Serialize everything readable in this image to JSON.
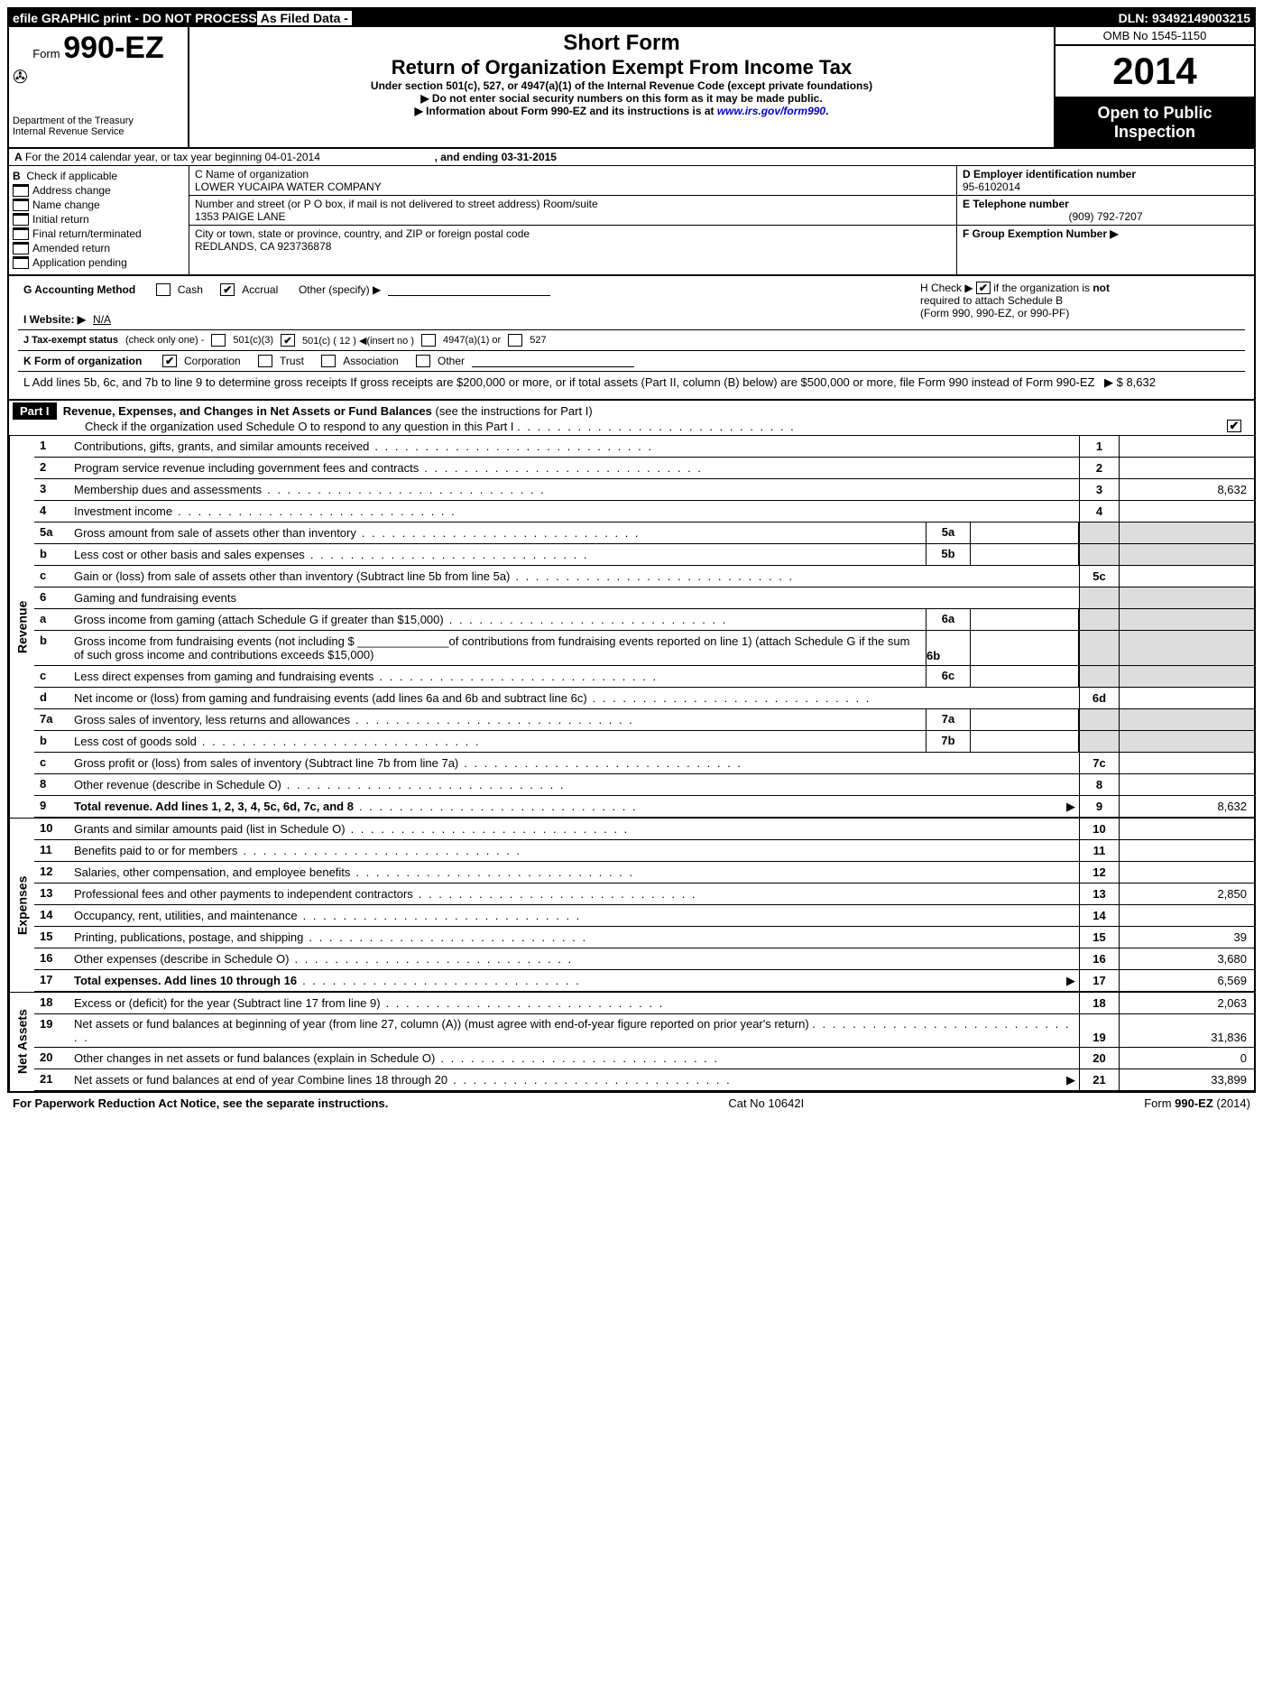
{
  "topbar": {
    "left": "efile GRAPHIC print - DO NOT PROCESS",
    "filed": "As Filed Data -",
    "dln": "DLN: 93492149003215"
  },
  "header": {
    "form_prefix": "Form",
    "form_number": "990-EZ",
    "dept1": "Department of the Treasury",
    "dept2": "Internal Revenue Service",
    "short_form": "Short Form",
    "title": "Return of Organization Exempt From Income Tax",
    "subtitle": "Under section 501(c), 527, or 4947(a)(1) of the Internal Revenue Code (except private foundations)",
    "note1": "▶ Do not enter social security numbers on this form as it may be made public.",
    "note2_prefix": "▶ Information about Form 990-EZ and its instructions is at ",
    "note2_link": "www.irs.gov/form990",
    "omb": "OMB No 1545-1150",
    "year": "2014",
    "open": "Open to Public Inspection"
  },
  "sectionA": {
    "label": "A",
    "text": "For the 2014 calendar year, or tax year beginning 04-01-2014",
    "ending": ", and ending 03-31-2015"
  },
  "sectionB": {
    "label": "B",
    "heading": "Check if applicable",
    "items": [
      "Address change",
      "Name change",
      "Initial return",
      "Final return/terminated",
      "Amended return",
      "Application pending"
    ]
  },
  "sectionC": {
    "name_label": "C Name of organization",
    "name": "LOWER YUCAIPA WATER COMPANY",
    "street_label": "Number and street (or P O box, if mail is not delivered to street address) Room/suite",
    "street": "1353 PAIGE LANE",
    "city_label": "City or town, state or province, country, and ZIP or foreign postal code",
    "city": "REDLANDS, CA  923736878"
  },
  "right": {
    "D_label": "D Employer identification number",
    "D_val": "95-6102014",
    "E_label": "E Telephone number",
    "E_val": "(909) 792-7207",
    "F_label": "F Group Exemption Number   ▶"
  },
  "G": {
    "label": "G Accounting Method",
    "cash": "Cash",
    "accrual": "Accrual",
    "other": "Other (specify) ▶"
  },
  "H": {
    "text1": "H   Check ▶",
    "text2": "if the organization is",
    "not": "not",
    "text3": "required to attach Schedule B",
    "text4": "(Form 990, 990-EZ, or 990-PF)"
  },
  "I": {
    "label": "I Website: ▶",
    "val": "N/A"
  },
  "J": {
    "label": "J Tax-exempt status",
    "hint": "(check only one) -",
    "o1": "501(c)(3)",
    "o2": "501(c) ( 12 ) ◀(insert no )",
    "o3": "4947(a)(1) or",
    "o4": "527"
  },
  "K": {
    "label": "K Form of organization",
    "o1": "Corporation",
    "o2": "Trust",
    "o3": "Association",
    "o4": "Other"
  },
  "L": {
    "text": "L Add lines 5b, 6c, and 7b to line 9 to determine gross receipts  If gross receipts are $200,000 or more, or if total assets (Part II, column (B) below) are $500,000 or more, file Form 990 instead of Form 990-EZ",
    "amount": "▶ $ 8,632"
  },
  "part1": {
    "label": "Part I",
    "title": "Revenue, Expenses, and Changes in Net Assets or Fund Balances",
    "hint": "(see the instructions for Part I)",
    "check": "Check if the organization used Schedule O to respond to any question in this Part I"
  },
  "revenue": [
    {
      "n": "1",
      "d": "Contributions, gifts, grants, and similar amounts received",
      "rn": "1",
      "rv": ""
    },
    {
      "n": "2",
      "d": "Program service revenue including government fees and contracts",
      "rn": "2",
      "rv": ""
    },
    {
      "n": "3",
      "d": "Membership dues and assessments",
      "rn": "3",
      "rv": "8,632"
    },
    {
      "n": "4",
      "d": "Investment income",
      "rn": "4",
      "rv": ""
    }
  ],
  "rev5a": {
    "n": "5a",
    "d": "Gross amount from sale of assets other than inventory",
    "sn": "5a"
  },
  "rev5b": {
    "n": "b",
    "d": "Less  cost or other basis and sales expenses",
    "sn": "5b"
  },
  "rev5c": {
    "n": "c",
    "d": "Gain or (loss) from sale of assets other than inventory (Subtract line 5b from line 5a)",
    "rn": "5c",
    "rv": ""
  },
  "rev6": {
    "n": "6",
    "d": "Gaming and fundraising events"
  },
  "rev6a": {
    "n": "a",
    "d": "Gross income from gaming (attach Schedule G if greater than $15,000)",
    "sn": "6a"
  },
  "rev6b": {
    "n": "b",
    "d": "Gross income from fundraising events (not including $ ______________of contributions from fundraising events reported on line 1) (attach Schedule G if the sum of such gross income and contributions exceeds $15,000)",
    "sn": "6b"
  },
  "rev6c": {
    "n": "c",
    "d": "Less  direct expenses from gaming and fundraising events",
    "sn": "6c"
  },
  "rev6d": {
    "n": "d",
    "d": "Net income or (loss) from gaming and fundraising events (add lines 6a and 6b and subtract line 6c)",
    "rn": "6d",
    "rv": ""
  },
  "rev7a": {
    "n": "7a",
    "d": "Gross sales of inventory, less returns and allowances",
    "sn": "7a"
  },
  "rev7b": {
    "n": "b",
    "d": "Less  cost of goods sold",
    "sn": "7b"
  },
  "rev7c": {
    "n": "c",
    "d": "Gross profit or (loss) from sales of inventory (Subtract line 7b from line 7a)",
    "rn": "7c",
    "rv": ""
  },
  "rev8": {
    "n": "8",
    "d": "Other revenue (describe in Schedule O)",
    "rn": "8",
    "rv": ""
  },
  "rev9": {
    "n": "9",
    "d": "Total revenue. Add lines 1, 2, 3, 4, 5c, 6d, 7c, and 8",
    "rn": "9",
    "rv": "8,632",
    "bold": true,
    "arrow": true
  },
  "expenses": [
    {
      "n": "10",
      "d": "Grants and similar amounts paid (list in Schedule O)",
      "rn": "10",
      "rv": ""
    },
    {
      "n": "11",
      "d": "Benefits paid to or for members",
      "rn": "11",
      "rv": ""
    },
    {
      "n": "12",
      "d": "Salaries, other compensation, and employee benefits",
      "rn": "12",
      "rv": ""
    },
    {
      "n": "13",
      "d": "Professional fees and other payments to independent contractors",
      "rn": "13",
      "rv": "2,850"
    },
    {
      "n": "14",
      "d": "Occupancy, rent, utilities, and maintenance",
      "rn": "14",
      "rv": ""
    },
    {
      "n": "15",
      "d": "Printing, publications, postage, and shipping",
      "rn": "15",
      "rv": "39"
    },
    {
      "n": "16",
      "d": "Other expenses (describe in Schedule O)",
      "rn": "16",
      "rv": "3,680"
    },
    {
      "n": "17",
      "d": "Total expenses. Add lines 10 through 16",
      "rn": "17",
      "rv": "6,569",
      "bold": true,
      "arrow": true
    }
  ],
  "netassets": [
    {
      "n": "18",
      "d": "Excess or (deficit) for the year (Subtract line 17 from line 9)",
      "rn": "18",
      "rv": "2,063"
    },
    {
      "n": "19",
      "d": "Net assets or fund balances at beginning of year (from line 27, column (A)) (must agree with end-of-year figure reported on prior year's return)",
      "rn": "19",
      "rv": "31,836"
    },
    {
      "n": "20",
      "d": "Other changes in net assets or fund balances (explain in Schedule O)",
      "rn": "20",
      "rv": "0"
    },
    {
      "n": "21",
      "d": "Net assets or fund balances at end of year  Combine lines 18 through 20",
      "rn": "21",
      "rv": "33,899",
      "arrow": true
    }
  ],
  "footer": {
    "left": "For Paperwork Reduction Act Notice, see the separate instructions.",
    "mid": "Cat No  10642I",
    "right": "Form 990-EZ (2014)"
  },
  "vert": {
    "rev": "Revenue",
    "exp": "Expenses",
    "net": "Net Assets"
  }
}
